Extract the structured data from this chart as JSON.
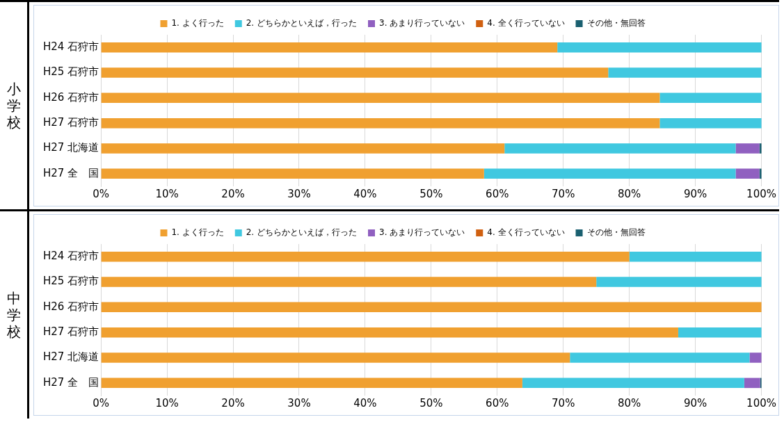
{
  "chart_data": [
    {
      "type": "bar",
      "orientation": "horizontal",
      "stacked": true,
      "ylabel": "小学校",
      "categories": [
        "H24 石狩市",
        "H25 石狩市",
        "H26 石狩市",
        "H27 石狩市",
        "H27 北海道",
        "H27 全　国"
      ],
      "series": [
        {
          "name": "1. よく行った",
          "color": "#f0a030",
          "values": [
            69.1,
            76.8,
            84.6,
            84.6,
            61.1,
            58.0
          ]
        },
        {
          "name": "2. どちらかといえば，行った",
          "color": "#40c8e0",
          "values": [
            30.9,
            23.2,
            15.4,
            15.4,
            35.0,
            38.1
          ]
        },
        {
          "name": "3. あまり行っていない",
          "color": "#9060c0",
          "values": [
            0,
            0,
            0,
            0,
            3.6,
            3.6
          ]
        },
        {
          "name": "4. 全く行っていない",
          "color": "#d06010",
          "values": [
            0,
            0,
            0,
            0,
            0,
            0
          ]
        },
        {
          "name": "その他・無回答",
          "color": "#1a6070",
          "values": [
            0,
            0,
            0,
            0,
            0.3,
            0.3
          ]
        }
      ],
      "xlim": [
        0,
        100
      ],
      "xticks": [
        {
          "value": 0,
          "label": "0%"
        },
        {
          "value": 10,
          "label": "10%"
        },
        {
          "value": 20,
          "label": "20%"
        },
        {
          "value": 30,
          "label": "30%"
        },
        {
          "value": 40,
          "label": "40%"
        },
        {
          "value": 50,
          "label": "50%"
        },
        {
          "value": 60,
          "label": "60%"
        },
        {
          "value": 70,
          "label": "70%"
        },
        {
          "value": 80,
          "label": "80%"
        },
        {
          "value": 90,
          "label": "90%"
        },
        {
          "value": 100,
          "label": "100%"
        }
      ],
      "grid": "x",
      "legend": "top"
    },
    {
      "type": "bar",
      "orientation": "horizontal",
      "stacked": true,
      "ylabel": "中学校",
      "categories": [
        "H24 石狩市",
        "H25 石狩市",
        "H26 石狩市",
        "H27 石狩市",
        "H27 北海道",
        "H27 全　国"
      ],
      "series": [
        {
          "name": "1. よく行った",
          "color": "#f0a030",
          "values": [
            80.0,
            75.0,
            100,
            87.4,
            71.0,
            63.8
          ]
        },
        {
          "name": "2. どちらかといえば，行った",
          "color": "#40c8e0",
          "values": [
            20.0,
            25.0,
            0,
            12.6,
            27.2,
            33.6
          ]
        },
        {
          "name": "3. あまり行っていない",
          "color": "#9060c0",
          "values": [
            0,
            0,
            0,
            0,
            1.8,
            2.4
          ]
        },
        {
          "name": "4. 全く行っていない",
          "color": "#d06010",
          "values": [
            0,
            0,
            0,
            0,
            0,
            0
          ]
        },
        {
          "name": "その他・無回答",
          "color": "#1a6070",
          "values": [
            0,
            0,
            0,
            0,
            0,
            0.2
          ]
        }
      ],
      "xlim": [
        0,
        100
      ],
      "xticks": [
        {
          "value": 0,
          "label": "0%"
        },
        {
          "value": 10,
          "label": "10%"
        },
        {
          "value": 20,
          "label": "20%"
        },
        {
          "value": 30,
          "label": "30%"
        },
        {
          "value": 40,
          "label": "40%"
        },
        {
          "value": 50,
          "label": "50%"
        },
        {
          "value": 60,
          "label": "60%"
        },
        {
          "value": 70,
          "label": "70%"
        },
        {
          "value": 80,
          "label": "80%"
        },
        {
          "value": 90,
          "label": "90%"
        },
        {
          "value": 100,
          "label": "100%"
        }
      ],
      "grid": "x",
      "legend": "top"
    }
  ]
}
